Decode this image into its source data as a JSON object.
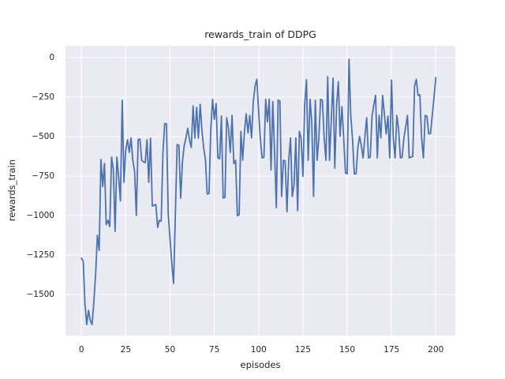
{
  "chart_data": {
    "type": "line",
    "title": "rewards_train of DDPG",
    "xlabel": "episodes",
    "ylabel": "rewards_train",
    "xlim": [
      -9,
      211
    ],
    "ylim": [
      -1760,
      75
    ],
    "x_ticks": [
      0,
      25,
      50,
      75,
      100,
      125,
      150,
      175,
      200
    ],
    "x_tick_labels": [
      "0",
      "25",
      "50",
      "75",
      "100",
      "125",
      "150",
      "175",
      "200"
    ],
    "y_ticks": [
      0,
      -250,
      -500,
      -750,
      -1000,
      -1250,
      -1500
    ],
    "y_tick_labels": [
      "0",
      "−250",
      "−500",
      "−750",
      "−1000",
      "−1250",
      "−1500"
    ],
    "grid": true,
    "legend": false,
    "line_color": "#4c72b0",
    "line_width": 1.8,
    "plot_background": "#eaeaf2",
    "grid_color": "#ffffff",
    "text_color": "#262626",
    "x_start": 0,
    "x_step": 1,
    "values": [
      -1270,
      -1290,
      -1560,
      -1690,
      -1600,
      -1665,
      -1690,
      -1550,
      -1370,
      -1125,
      -1220,
      -645,
      -816,
      -670,
      -1058,
      -1030,
      -1070,
      -630,
      -706,
      -1100,
      -630,
      -760,
      -907,
      -270,
      -790,
      -585,
      -520,
      -600,
      -508,
      -650,
      -720,
      -1000,
      -520,
      -515,
      -650,
      -660,
      -665,
      -520,
      -790,
      -510,
      -940,
      -935,
      -930,
      -1075,
      -1030,
      -1035,
      -600,
      -417,
      -420,
      -990,
      -1150,
      -1300,
      -1430,
      -1000,
      -550,
      -555,
      -890,
      -660,
      -560,
      -508,
      -447,
      -520,
      -569,
      -305,
      -510,
      -315,
      -510,
      -295,
      -460,
      -569,
      -650,
      -864,
      -860,
      -460,
      -264,
      -390,
      -290,
      -635,
      -640,
      -370,
      -889,
      -885,
      -381,
      -447,
      -601,
      -366,
      -671,
      -650,
      -1001,
      -995,
      -467,
      -650,
      -470,
      -356,
      -477,
      -366,
      -508,
      -279,
      -178,
      -137,
      -345,
      -518,
      -635,
      -630,
      -264,
      -406,
      -264,
      -711,
      -279,
      -600,
      -950,
      -269,
      -275,
      -879,
      -650,
      -655,
      -976,
      -650,
      -508,
      -879,
      -803,
      -508,
      -970,
      -467,
      -510,
      -752,
      -300,
      -140,
      -650,
      -264,
      -406,
      -879,
      -270,
      -650,
      -508,
      -264,
      -270,
      -508,
      -650,
      -120,
      -650,
      -400,
      -130,
      -700,
      -300,
      -152,
      -498,
      -310,
      -500,
      -730,
      -735,
      -10,
      -366,
      -518,
      -737,
      -735,
      -570,
      -498,
      -560,
      -635,
      -500,
      -381,
      -635,
      -630,
      -371,
      -300,
      -239,
      -635,
      -366,
      -508,
      -239,
      -360,
      -483,
      -370,
      -635,
      -142,
      -508,
      -635,
      -366,
      -450,
      -635,
      -630,
      -508,
      -440,
      -366,
      -635,
      -630,
      -625,
      -178,
      -137,
      -239,
      -235,
      -508,
      -635,
      -366,
      -370,
      -483,
      -480,
      -366,
      -250,
      -127
    ]
  }
}
